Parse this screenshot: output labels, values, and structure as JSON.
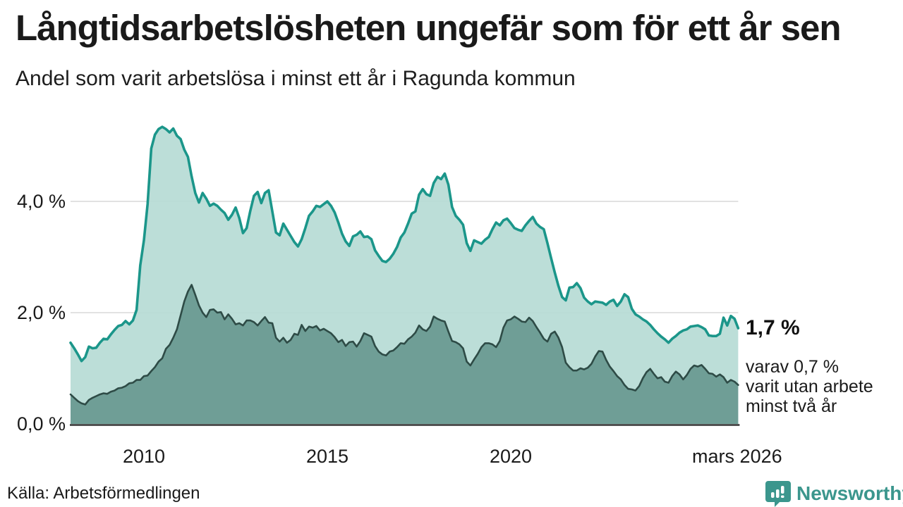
{
  "header": {
    "title": "Långtidsarbetslösheten ungefär som för ett år sen",
    "subtitle": "Andel som varit arbetslösa i minst ett år i Ragunda kommun"
  },
  "annotation": {
    "value_label": "1,7 %",
    "secondary_lines": [
      "varav 0,7 %",
      "varit utan arbete",
      "minst två år"
    ]
  },
  "footer": {
    "source": "Källa: Arbetsförmedlingen",
    "brand": "Newsworthy"
  },
  "chart_data": {
    "type": "area",
    "title": "Långtidsarbetslösheten ungefär som för ett år sen",
    "subtitle": "Andel som varit arbetslösa i minst ett år i Ragunda kommun",
    "x_start": 2008.0,
    "x_step": 0.1,
    "x_end": 2026.2,
    "ylim": [
      0,
      5.6
    ],
    "grid": true,
    "legend_position": "none",
    "colors": {
      "teal_line": "#1b968a",
      "light_fill": "#b7dcd5",
      "dark_fill": "#6f9e96",
      "dark_line": "#2e4b46",
      "grid": "#d9d9d9",
      "axis": "#333333",
      "text": "#1a1a1a",
      "brand_teal": "#3b968d"
    },
    "y_ticks": [
      {
        "value": 0,
        "label": "0,0 %"
      },
      {
        "value": 2,
        "label": "2,0 %"
      },
      {
        "value": 4,
        "label": "4,0 %"
      }
    ],
    "x_ticks": [
      {
        "t": 2010,
        "label": "2010"
      },
      {
        "t": 2015,
        "label": "2015"
      },
      {
        "t": 2020,
        "label": "2020"
      },
      {
        "t": 2026.17,
        "label": "mars 2026"
      }
    ],
    "series": [
      {
        "name": "Andel arbetslösa minst ett år",
        "color": "#1b968a",
        "fill": "#b7dcd5",
        "last_value_label": "1,7 %",
        "values": [
          1.46,
          1.36,
          1.25,
          1.13,
          1.2,
          1.39,
          1.36,
          1.37,
          1.46,
          1.53,
          1.52,
          1.61,
          1.69,
          1.76,
          1.78,
          1.85,
          1.79,
          1.86,
          2.05,
          2.85,
          3.3,
          3.95,
          4.95,
          5.2,
          5.3,
          5.34,
          5.3,
          5.24,
          5.31,
          5.18,
          5.12,
          4.93,
          4.8,
          4.45,
          4.15,
          3.98,
          4.15,
          4.05,
          3.92,
          3.96,
          3.92,
          3.85,
          3.79,
          3.67,
          3.76,
          3.89,
          3.7,
          3.43,
          3.52,
          3.83,
          4.1,
          4.17,
          3.97,
          4.15,
          4.2,
          3.82,
          3.44,
          3.39,
          3.6,
          3.49,
          3.38,
          3.27,
          3.19,
          3.32,
          3.52,
          3.74,
          3.82,
          3.92,
          3.9,
          3.95,
          4.0,
          3.92,
          3.8,
          3.62,
          3.42,
          3.28,
          3.2,
          3.37,
          3.4,
          3.46,
          3.36,
          3.37,
          3.32,
          3.12,
          3.02,
          2.93,
          2.91,
          2.97,
          3.06,
          3.18,
          3.35,
          3.44,
          3.6,
          3.78,
          3.82,
          4.12,
          4.22,
          4.13,
          4.1,
          4.33,
          4.44,
          4.4,
          4.5,
          4.3,
          3.9,
          3.74,
          3.67,
          3.58,
          3.25,
          3.11,
          3.3,
          3.27,
          3.24,
          3.31,
          3.36,
          3.5,
          3.62,
          3.57,
          3.66,
          3.69,
          3.61,
          3.52,
          3.49,
          3.47,
          3.57,
          3.65,
          3.72,
          3.6,
          3.54,
          3.5,
          3.25,
          2.98,
          2.72,
          2.48,
          2.28,
          2.22,
          2.45,
          2.46,
          2.53,
          2.44,
          2.27,
          2.2,
          2.15,
          2.2,
          2.19,
          2.18,
          2.14,
          2.2,
          2.23,
          2.12,
          2.2,
          2.33,
          2.28,
          2.07,
          1.97,
          1.93,
          1.88,
          1.84,
          1.78,
          1.7,
          1.63,
          1.57,
          1.52,
          1.46,
          1.53,
          1.58,
          1.64,
          1.68,
          1.7,
          1.75,
          1.76,
          1.77,
          1.74,
          1.7,
          1.59,
          1.58,
          1.58,
          1.62,
          1.91,
          1.77,
          1.94,
          1.89,
          1.72
        ]
      },
      {
        "name": "Andel arbetslösa minst två år",
        "color": "#2e4b46",
        "fill": "#6f9e96",
        "last_value_label": "0,7 %",
        "values": [
          0.53,
          0.47,
          0.41,
          0.37,
          0.35,
          0.43,
          0.47,
          0.5,
          0.53,
          0.55,
          0.54,
          0.58,
          0.6,
          0.64,
          0.65,
          0.68,
          0.73,
          0.74,
          0.79,
          0.79,
          0.86,
          0.87,
          0.95,
          1.02,
          1.12,
          1.18,
          1.35,
          1.42,
          1.55,
          1.7,
          1.95,
          2.2,
          2.38,
          2.5,
          2.32,
          2.13,
          2.0,
          1.92,
          2.05,
          2.06,
          2.0,
          2.01,
          1.88,
          1.97,
          1.89,
          1.79,
          1.81,
          1.77,
          1.86,
          1.86,
          1.83,
          1.77,
          1.85,
          1.92,
          1.82,
          1.81,
          1.55,
          1.48,
          1.55,
          1.46,
          1.51,
          1.62,
          1.6,
          1.78,
          1.67,
          1.75,
          1.73,
          1.76,
          1.68,
          1.71,
          1.67,
          1.63,
          1.56,
          1.47,
          1.51,
          1.4,
          1.47,
          1.48,
          1.39,
          1.49,
          1.63,
          1.6,
          1.57,
          1.4,
          1.3,
          1.25,
          1.23,
          1.3,
          1.32,
          1.38,
          1.45,
          1.44,
          1.52,
          1.57,
          1.64,
          1.77,
          1.7,
          1.67,
          1.75,
          1.93,
          1.89,
          1.86,
          1.84,
          1.66,
          1.49,
          1.47,
          1.43,
          1.36,
          1.12,
          1.05,
          1.16,
          1.26,
          1.38,
          1.45,
          1.45,
          1.43,
          1.38,
          1.49,
          1.73,
          1.86,
          1.88,
          1.93,
          1.89,
          1.84,
          1.83,
          1.91,
          1.85,
          1.74,
          1.64,
          1.53,
          1.48,
          1.62,
          1.66,
          1.55,
          1.38,
          1.1,
          1.02,
          0.96,
          0.96,
          1.0,
          0.98,
          1.01,
          1.08,
          1.21,
          1.31,
          1.3,
          1.15,
          1.03,
          0.95,
          0.86,
          0.8,
          0.7,
          0.63,
          0.62,
          0.6,
          0.68,
          0.82,
          0.93,
          0.99,
          0.9,
          0.82,
          0.84,
          0.76,
          0.74,
          0.86,
          0.94,
          0.89,
          0.8,
          0.88,
          0.99,
          1.05,
          1.03,
          1.06,
          0.99,
          0.91,
          0.9,
          0.85,
          0.89,
          0.84,
          0.74,
          0.79,
          0.76,
          0.7
        ]
      }
    ]
  }
}
